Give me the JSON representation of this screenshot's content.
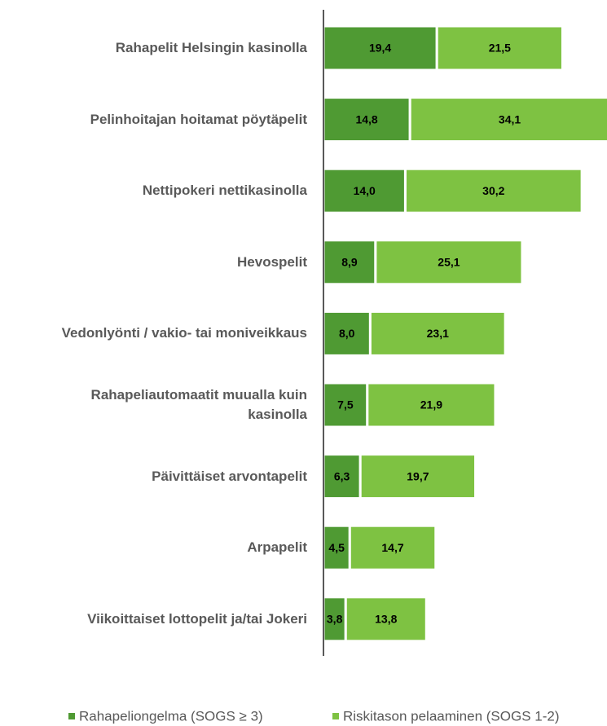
{
  "chart_data": {
    "type": "stacked-bar-horizontal",
    "categories": [
      "Rahapelit Helsingin kasinolla",
      "Pelinhoitajan hoitamat pöytäpelit",
      "Nettipokeri nettikasinolla",
      "Hevospelit",
      "Vedonlyönti / vakio- tai moniveikkaus",
      "Rahapeliautomaatit muualla kuin kasinolla",
      "Päivittäiset arvontapelit",
      "Arpapelit",
      "Viikoittaiset lottopelit ja/tai Jokeri"
    ],
    "series": [
      {
        "name": "Rahapeliongelma (SOGS ≥ 3)",
        "color": "#4f9a33",
        "values": [
          19.4,
          14.8,
          14.0,
          8.9,
          8.0,
          7.5,
          6.3,
          4.5,
          3.8
        ],
        "value_labels": [
          "19,4",
          "14,8",
          "14,0",
          "8,9",
          "8,0",
          "7,5",
          "6,3",
          "4,5",
          "3,8"
        ]
      },
      {
        "name": "Riskitason pelaaminen (SOGS 1-2)",
        "color": "#7ec242",
        "values": [
          21.5,
          34.1,
          30.2,
          25.1,
          23.1,
          21.9,
          19.7,
          14.7,
          13.8
        ],
        "value_labels": [
          "21,5",
          "34,1",
          "30,2",
          "25,1",
          "23,1",
          "21,9",
          "19,7",
          "14,7",
          "13,8"
        ]
      }
    ],
    "xlim": [
      0,
      48.5
    ],
    "legend": "bottom"
  }
}
